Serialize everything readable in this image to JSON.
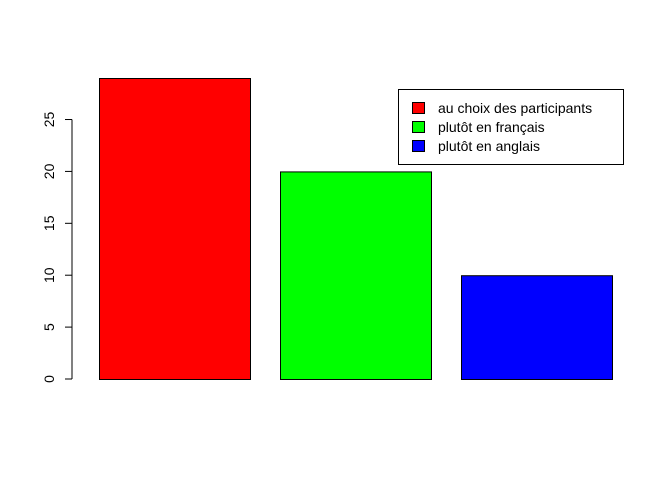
{
  "chart_data": {
    "type": "bar",
    "title": "",
    "xlabel": "",
    "ylabel": "",
    "categories": [
      "au choix des participants",
      "plutôt en français",
      "plutôt en anglais"
    ],
    "values": [
      29,
      20,
      10
    ],
    "colors": [
      "#ff0000",
      "#00ff00",
      "#0000ff"
    ],
    "ylim": [
      0,
      29
    ],
    "yticks": [
      0,
      5,
      10,
      15,
      20,
      25
    ],
    "ytick_labels": [
      "0",
      "5",
      "10",
      "15",
      "20",
      "25"
    ],
    "legend": {
      "position": "top-right",
      "entries": [
        {
          "label": "au choix des participants",
          "color": "#ff0000"
        },
        {
          "label": "plutôt en français",
          "color": "#00ff00"
        },
        {
          "label": "plutôt en anglais",
          "color": "#0000ff"
        }
      ]
    },
    "grid": false
  }
}
